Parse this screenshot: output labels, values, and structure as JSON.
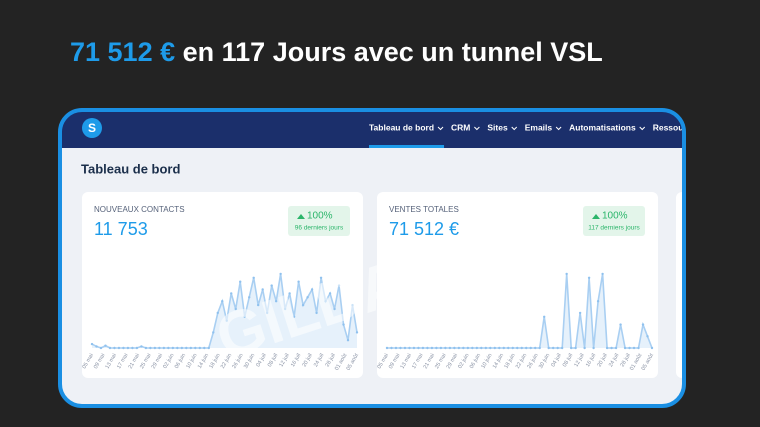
{
  "headline": {
    "amount": "71 512 €",
    "rest": "en 117 Jours avec un tunnel  VSL"
  },
  "nav": {
    "items": [
      "Tableau de bord",
      "CRM",
      "Sites",
      "Emails",
      "Automatisations",
      "Ressources"
    ]
  },
  "page_title": "Tableau de bord",
  "watermark": "GILDASW",
  "cards": [
    {
      "label": "NOUVEAUX CONTACTS",
      "value": "11 753",
      "badge": "100%",
      "period": "96 derniers jours",
      "x_labels": [
        "05 mai",
        "09 mai",
        "13 mai",
        "17 mai",
        "21 mai",
        "25 mai",
        "29 mai",
        "02 juin",
        "06 juin",
        "10 juin",
        "14 juin",
        "18 juin",
        "22 juin",
        "26 juin",
        "30 juin",
        "04 juil",
        "08 juil",
        "12 juil",
        "16 juil",
        "20 juil",
        "24 juil",
        "28 juil",
        "01 août",
        "05 août"
      ],
      "ylim": [
        0,
        100
      ],
      "values": [
        5,
        2,
        0,
        3,
        0,
        0,
        0,
        0,
        0,
        0,
        0,
        2,
        0,
        0,
        0,
        0,
        0,
        0,
        0,
        0,
        0,
        0,
        0,
        0,
        0,
        0,
        0,
        20,
        45,
        60,
        35,
        70,
        50,
        85,
        40,
        65,
        90,
        55,
        75,
        45,
        80,
        60,
        95,
        50,
        70,
        40,
        85,
        55,
        65,
        75,
        45,
        90,
        60,
        70,
        50,
        80,
        30,
        10,
        55,
        20
      ]
    },
    {
      "label": "VENTES TOTALES",
      "value": "71 512 €",
      "badge": "100%",
      "period": "117 derniers jours",
      "x_labels": [
        "05 mai",
        "09 mai",
        "13 mai",
        "17 mai",
        "21 mai",
        "25 mai",
        "29 mai",
        "02 juin",
        "06 juin",
        "10 juin",
        "14 juin",
        "18 juin",
        "22 juin",
        "26 juin",
        "30 juin",
        "04 juil",
        "08 juil",
        "12 juil",
        "16 juil",
        "20 juil",
        "24 juil",
        "28 juil",
        "01 août",
        "05 août"
      ],
      "ylim": [
        0,
        100
      ],
      "values": [
        0,
        0,
        0,
        0,
        0,
        0,
        0,
        0,
        0,
        0,
        0,
        0,
        0,
        0,
        0,
        0,
        0,
        0,
        0,
        0,
        0,
        0,
        0,
        0,
        0,
        0,
        0,
        0,
        0,
        0,
        0,
        0,
        0,
        0,
        0,
        40,
        0,
        0,
        0,
        0,
        95,
        0,
        0,
        45,
        0,
        90,
        0,
        60,
        95,
        0,
        0,
        0,
        30,
        0,
        0,
        0,
        0,
        30,
        15,
        0
      ]
    }
  ]
}
